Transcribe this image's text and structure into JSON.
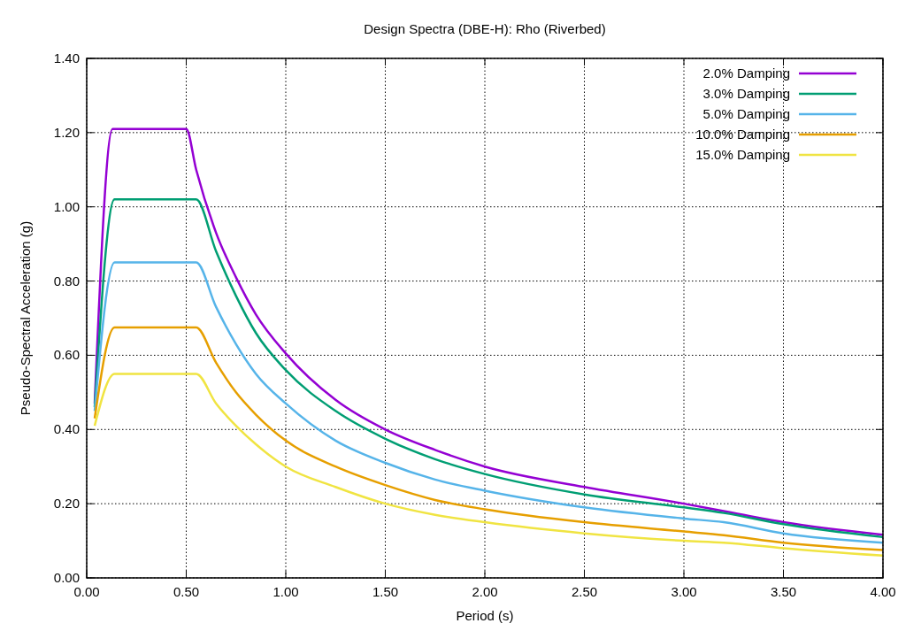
{
  "chart_data": {
    "type": "line",
    "title": "Design Spectra (DBE-H): Rho (Riverbed)",
    "xlabel": "Period (s)",
    "ylabel": "Pseudo-Spectral Acceleration (g)",
    "xlim": [
      0,
      4
    ],
    "ylim": [
      0,
      1.4
    ],
    "xticks": [
      {
        "value": 0,
        "label": "0.00"
      },
      {
        "value": 0.5,
        "label": "0.50"
      },
      {
        "value": 1,
        "label": "1.00"
      },
      {
        "value": 1.5,
        "label": "1.50"
      },
      {
        "value": 2,
        "label": "2.00"
      },
      {
        "value": 2.5,
        "label": "2.50"
      },
      {
        "value": 3,
        "label": "3.00"
      },
      {
        "value": 3.5,
        "label": "3.50"
      },
      {
        "value": 4,
        "label": "4.00"
      }
    ],
    "yticks": [
      {
        "value": 0,
        "label": "0.00"
      },
      {
        "value": 0.2,
        "label": "0.20"
      },
      {
        "value": 0.4,
        "label": "0.40"
      },
      {
        "value": 0.6,
        "label": "0.60"
      },
      {
        "value": 0.8,
        "label": "0.80"
      },
      {
        "value": 1,
        "label": "1.00"
      },
      {
        "value": 1.2,
        "label": "1.20"
      },
      {
        "value": 1.4,
        "label": "1.40"
      }
    ],
    "grid": true,
    "legend": "top right",
    "line_style": "solid",
    "marker": "none",
    "x": [
      0.04,
      0.13,
      0.5,
      0.55,
      0.65,
      0.75,
      0.85,
      1,
      1.25,
      1.5,
      1.75,
      2,
      2.5,
      3,
      3.2,
      3.5,
      4
    ],
    "series": [
      {
        "name": "2.0% Damping",
        "color": "#9400d3",
        "values": [
          0.47,
          1.21,
          1.21,
          1.1,
          0.93,
          0.81,
          0.71,
          0.605,
          0.48,
          0.4,
          0.345,
          0.3,
          0.245,
          0.2,
          0.18,
          0.15,
          0.116
        ]
      },
      {
        "name": "3.0% Damping",
        "color": "#009e73",
        "x": [
          0.04,
          0.14,
          0.5,
          0.55,
          0.65,
          0.75,
          0.85,
          1,
          1.25,
          1.5,
          1.75,
          2,
          2.5,
          3,
          3.2,
          3.5,
          4
        ],
        "values": [
          0.46,
          1.02,
          1.02,
          1.02,
          0.88,
          0.76,
          0.66,
          0.56,
          0.45,
          0.375,
          0.32,
          0.28,
          0.225,
          0.19,
          0.175,
          0.145,
          0.11
        ]
      },
      {
        "name": "5.0% Damping",
        "color": "#56b4e9",
        "x": [
          0.04,
          0.14,
          0.5,
          0.55,
          0.65,
          0.75,
          0.85,
          1,
          1.25,
          1.5,
          1.75,
          2,
          2.5,
          3,
          3.2,
          3.5,
          4
        ],
        "values": [
          0.45,
          0.85,
          0.85,
          0.85,
          0.73,
          0.63,
          0.55,
          0.47,
          0.37,
          0.31,
          0.265,
          0.235,
          0.19,
          0.16,
          0.15,
          0.12,
          0.095
        ]
      },
      {
        "name": "10.0% Damping",
        "color": "#e69f00",
        "x": [
          0.04,
          0.14,
          0.5,
          0.55,
          0.65,
          0.75,
          0.85,
          1,
          1.25,
          1.5,
          1.75,
          2,
          2.5,
          3,
          3.2,
          3.5,
          4
        ],
        "values": [
          0.43,
          0.675,
          0.675,
          0.675,
          0.58,
          0.5,
          0.44,
          0.37,
          0.3,
          0.25,
          0.21,
          0.185,
          0.15,
          0.125,
          0.115,
          0.095,
          0.075
        ]
      },
      {
        "name": "15.0% Damping",
        "color": "#f0e442",
        "x": [
          0.04,
          0.14,
          0.5,
          0.55,
          0.65,
          0.75,
          0.85,
          1,
          1.25,
          1.5,
          1.75,
          2,
          2.5,
          3,
          3.2,
          3.5,
          4
        ],
        "values": [
          0.41,
          0.55,
          0.55,
          0.55,
          0.47,
          0.41,
          0.36,
          0.3,
          0.245,
          0.2,
          0.17,
          0.15,
          0.12,
          0.1,
          0.095,
          0.08,
          0.06
        ]
      }
    ]
  }
}
